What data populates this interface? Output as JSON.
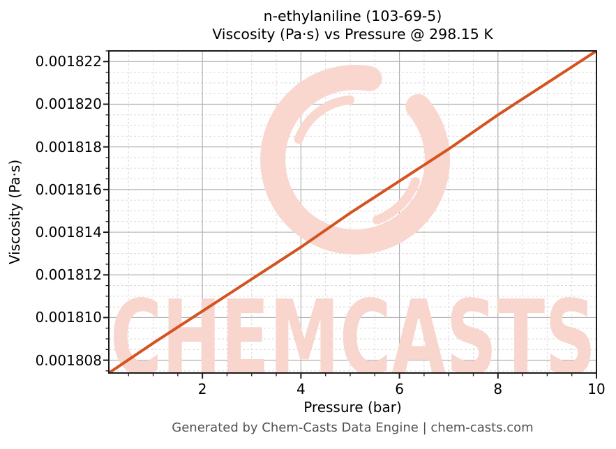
{
  "title": {
    "line1": "n-ethylaniline (103-69-5)",
    "line2": "Viscosity (Pa·s) vs Pressure @ 298.15 K"
  },
  "footer": "Generated by Chem-Casts Data Engine | chem-casts.com",
  "watermark": {
    "text": "CHEMCASTS",
    "logo_icon": "brush-ring-icon",
    "text_color": "#f8d5cd",
    "ring_color": "#f9d7cf"
  },
  "chart_data": {
    "type": "line",
    "title": "n-ethylaniline (103-69-5) Viscosity (Pa·s) vs Pressure @ 298.15 K",
    "xlabel": "Pressure (bar)",
    "ylabel": "Viscosity (Pa·s)",
    "xlim": [
      0.1,
      10
    ],
    "ylim": [
      0.0018074,
      0.0018225
    ],
    "x_ticks": [
      2,
      4,
      6,
      8,
      10
    ],
    "x_tick_labels": [
      "2",
      "4",
      "6",
      "8",
      "10"
    ],
    "x_minor_step": 0.5,
    "y_ticks": [
      0.001808,
      0.00181,
      0.001812,
      0.001814,
      0.001816,
      0.001818,
      0.00182,
      0.001822
    ],
    "y_tick_labels": [
      "0.001808",
      "0.001810",
      "0.001812",
      "0.001814",
      "0.001816",
      "0.001818",
      "0.001820",
      "0.001822"
    ],
    "y_minor_step": 5e-07,
    "grid": true,
    "legend": null,
    "line_color": "#d4531e",
    "major_grid_color": "#b0b0b0",
    "minor_grid_color": "#d9d9d9",
    "series": [
      {
        "name": "viscosity_vs_pressure",
        "x": [
          0.1,
          1,
          2,
          3,
          4,
          5,
          6,
          7,
          8,
          9,
          10
        ],
        "y": [
          0.0018074,
          0.0018088,
          0.0018103,
          0.0018118,
          0.0018133,
          0.0018149,
          0.0018164,
          0.0018179,
          0.0018195,
          0.001821,
          0.0018225
        ]
      }
    ]
  }
}
